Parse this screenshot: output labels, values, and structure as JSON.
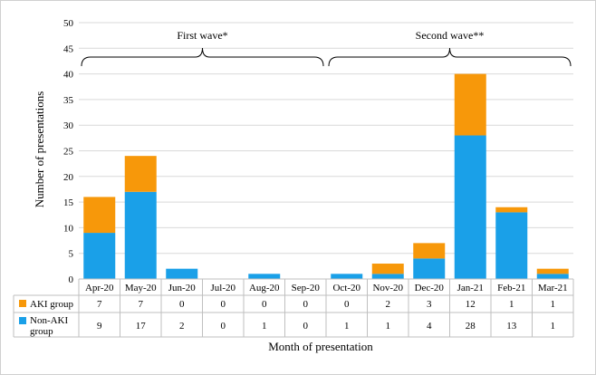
{
  "chart_data": {
    "type": "bar",
    "stacked": true,
    "categories": [
      "Apr-20",
      "May-20",
      "Jun-20",
      "Jul-20",
      "Aug-20",
      "Sep-20",
      "Oct-20",
      "Nov-20",
      "Dec-20",
      "Jan-21",
      "Feb-21",
      "Mar-21"
    ],
    "series": [
      {
        "name": "AKI group",
        "values": [
          7,
          7,
          0,
          0,
          0,
          0,
          0,
          2,
          3,
          12,
          1,
          1
        ],
        "color": "#F7980A"
      },
      {
        "name": "Non-AKI group",
        "values": [
          9,
          17,
          2,
          0,
          1,
          0,
          1,
          1,
          4,
          28,
          13,
          1
        ],
        "color": "#1AA0E8"
      }
    ],
    "ylabel": "Number of presentations",
    "xlabel": "Month of presentation",
    "ylim": [
      0,
      50
    ],
    "yticks": [
      0,
      5,
      10,
      15,
      20,
      25,
      30,
      35,
      40,
      45,
      50
    ],
    "grid": true,
    "data_table": true,
    "annotations": [
      {
        "text": "First wave*",
        "from": "Apr-20",
        "to": "Sep-20"
      },
      {
        "text": "Second wave**",
        "from": "Oct-20",
        "to": "Mar-21"
      }
    ]
  }
}
